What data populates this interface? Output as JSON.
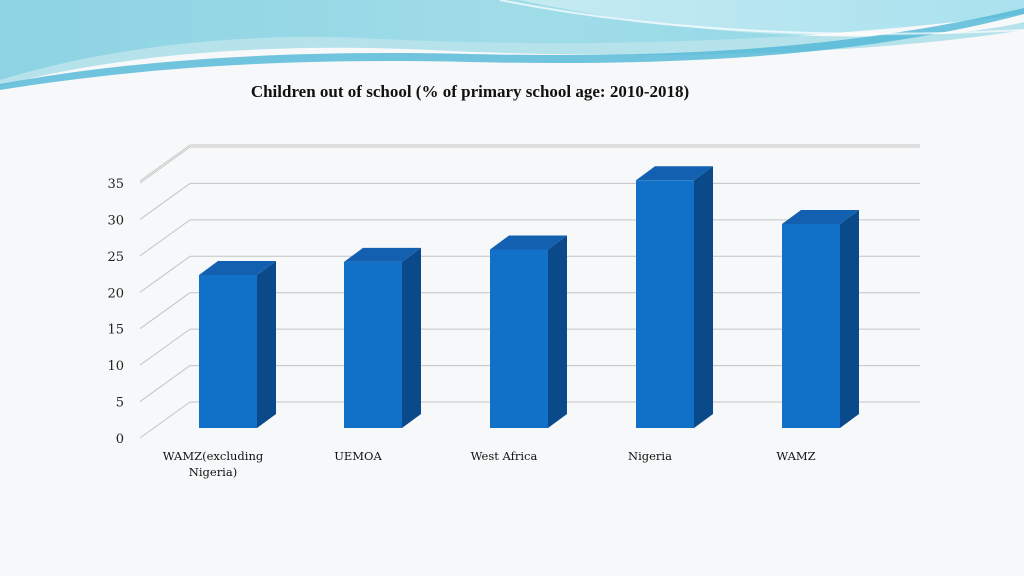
{
  "slide": {
    "colors": {
      "background": "#f7f8f9",
      "banner_light": "#bfe6ef",
      "banner_mid": "#7fd0e0",
      "banner_dark": "#4fb6d6"
    }
  },
  "chart_data": {
    "type": "bar",
    "title": "Children out of school (% of primary school age: 2010-2018)",
    "categories": [
      "WAMZ(excluding Nigeria)",
      "UEMOA",
      "West Africa",
      "Nigeria",
      "WAMZ"
    ],
    "category_lines": [
      [
        "WAMZ(excluding",
        "Nigeria)"
      ],
      [
        "UEMOA"
      ],
      [
        "West Africa"
      ],
      [
        "Nigeria"
      ],
      [
        "WAMZ"
      ]
    ],
    "values": [
      21,
      22.8,
      24.5,
      34,
      28
    ],
    "ylim": [
      0,
      35
    ],
    "yticks": [
      "0",
      "5",
      "10",
      "15",
      "20",
      "25",
      "30",
      "35"
    ],
    "grid": true,
    "legend": "none",
    "style": "3d-column",
    "colors": {
      "bar_front": "#1170c8",
      "bar_top": "#1460b0",
      "bar_side": "#0a4a8a",
      "grid": "#c4c4c4"
    }
  }
}
